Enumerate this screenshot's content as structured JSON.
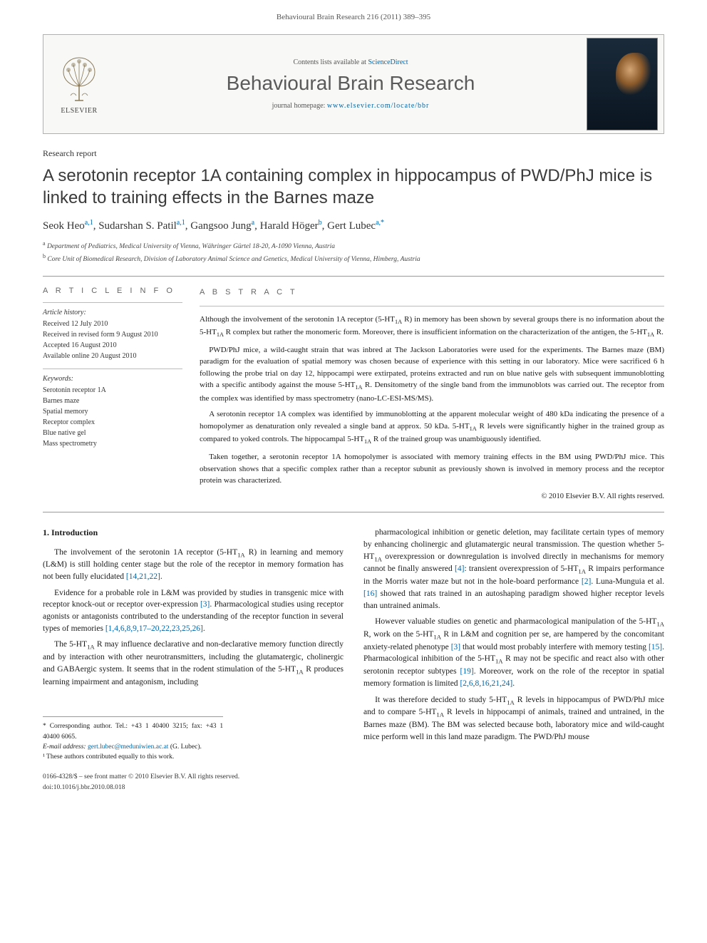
{
  "header": {
    "citation": "Behavioural Brain Research 216 (2011) 389–395"
  },
  "contentsBar": {
    "listLine_pre": "Contents lists available at ",
    "listLine_link": "ScienceDirect",
    "journalName": "Behavioural Brain Research",
    "homepage_pre": "journal homepage: ",
    "homepage_link": "www.elsevier.com/locate/bbr",
    "elsevier": "ELSEVIER"
  },
  "article": {
    "type": "Research report",
    "title": "A serotonin receptor 1A containing complex in hippocampus of PWD/PhJ mice is linked to training effects in the Barnes maze",
    "authors_html": "Seok Heo<sup>a,1</sup>, Sudarshan S. Patil<sup>a,1</sup>, Gangsoo Jung<sup>a</sup>, Harald Höger<sup>b</sup>, Gert Lubec<sup>a,*</sup>",
    "affiliations": {
      "a": "Department of Pediatrics, Medical University of Vienna, Währinger Gürtel 18-20, A-1090 Vienna, Austria",
      "b": "Core Unit of Biomedical Research, Division of Laboratory Animal Science and Genetics, Medical University of Vienna, Himberg, Austria"
    }
  },
  "articleInfo": {
    "heading": "A R T I C L E   I N F O",
    "historyHeading": "Article history:",
    "history": [
      "Received 12 July 2010",
      "Received in revised form 9 August 2010",
      "Accepted 16 August 2010",
      "Available online 20 August 2010"
    ],
    "keywordsHeading": "Keywords:",
    "keywords": [
      "Serotonin receptor 1A",
      "Barnes maze",
      "Spatial memory",
      "Receptor complex",
      "Blue native gel",
      "Mass spectrometry"
    ]
  },
  "abstract": {
    "heading": "A B S T R A C T",
    "p1": "Although the involvement of the serotonin 1A receptor (5-HT₁A R) in memory has been shown by several groups there is no information about the 5-HT₁A R complex but rather the monomeric form. Moreover, there is insufficient information on the characterization of the antigen, the 5-HT₁A R.",
    "p2": "PWD/PhJ mice, a wild-caught strain that was inbred at The Jackson Laboratories were used for the experiments. The Barnes maze (BM) paradigm for the evaluation of spatial memory was chosen because of experience with this setting in our laboratory. Mice were sacrificed 6 h following the probe trial on day 12, hippocampi were extirpated, proteins extracted and run on blue native gels with subsequent immunoblotting with a specific antibody against the mouse 5-HT₁A R. Densitometry of the single band from the immunoblots was carried out. The receptor from the complex was identified by mass spectrometry (nano-LC-ESI-MS/MS).",
    "p3": "A serotonin receptor 1A complex was identified by immunoblotting at the apparent molecular weight of 480 kDa indicating the presence of a homopolymer as denaturation only revealed a single band at approx. 50 kDa. 5-HT₁A R levels were significantly higher in the trained group as compared to yoked controls. The hippocampal 5-HT₁A R of the trained group was unambiguously identified.",
    "p4": "Taken together, a serotonin receptor 1A homopolymer is associated with memory training effects in the BM using PWD/PhJ mice. This observation shows that a specific complex rather than a receptor subunit as previously shown is involved in memory process and the receptor protein was characterized.",
    "copyright": "© 2010 Elsevier B.V. All rights reserved."
  },
  "introduction": {
    "heading": "1. Introduction",
    "left": [
      "The involvement of the serotonin 1A receptor (5-HT₁A R) in learning and memory (L&M) is still holding center stage but the role of the receptor in memory formation has not been fully elucidated [14,21,22].",
      "Evidence for a probable role in L&M was provided by studies in transgenic mice with receptor knock-out or receptor over-expression [3]. Pharmacological studies using receptor agonists or antagonists contributed to the understanding of the receptor function in several types of memories [1,4,6,8,9,17–20,22,23,25,26].",
      "The 5-HT₁A R may influence declarative and non-declarative memory function directly and by interaction with other neurotransmitters, including the glutamatergic, cholinergic and GABAergic system. It seems that in the rodent stimulation of the 5-HT₁A R produces learning impairment and antagonism, including"
    ],
    "right": [
      "pharmacological inhibition or genetic deletion, may facilitate certain types of memory by enhancing cholinergic and glutamatergic neural transmission. The question whether 5-HT₁A overexpression or downregulation is involved directly in mechanisms for memory cannot be finally answered [4]: transient overexpression of 5-HT₁A R impairs performance in the Morris water maze but not in the hole-board performance [2]. Luna-Munguia et al. [16] showed that rats trained in an autoshaping paradigm showed higher receptor levels than untrained animals.",
      "However valuable studies on genetic and pharmacological manipulation of the 5-HT₁A R, work on the 5-HT₁A R in L&M and cognition per se, are hampered by the concomitant anxiety-related phenotype [3] that would most probably interfere with memory testing [15]. Pharmacological inhibition of the 5-HT₁A R may not be specific and react also with other serotonin receptor subtypes [19]. Moreover, work on the role of the receptor in spatial memory formation is limited [2,6,8,16,21,24].",
      "It was therefore decided to study 5-HT₁A R levels in hippocampus of PWD/PhJ mice and to compare 5-HT₁A R levels in hippocampi of animals, trained and untrained, in the Barnes maze (BM). The BM was selected because both, laboratory mice and wild-caught mice perform well in this land maze paradigm. The PWD/PhJ mouse"
    ]
  },
  "footnotes": {
    "corr": "* Corresponding author. Tel.: +43 1 40400 3215; fax: +43 1 40400 6065.",
    "email_label": "E-mail address: ",
    "email": "gert.lubec@meduniwien.ac.at",
    "email_after": " (G. Lubec).",
    "equal": "¹ These authors contributed equally to this work."
  },
  "footer": {
    "line1": "0166-4328/$ – see front matter © 2010 Elsevier B.V. All rights reserved.",
    "line2": "doi:10.1016/j.bbr.2010.08.018"
  }
}
